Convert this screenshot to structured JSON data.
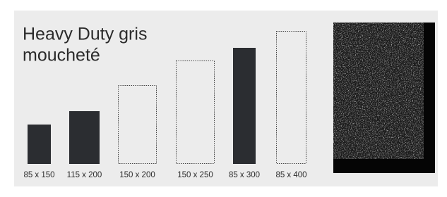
{
  "header": {
    "title_lines": [
      "Heavy Duty gris",
      "moucheté"
    ]
  },
  "sizes": [
    {
      "label": "85 x 150",
      "filled": true
    },
    {
      "label": "115 x 200",
      "filled": true
    },
    {
      "label": "150 x 200",
      "filled": false
    },
    {
      "label": "150 x 250",
      "filled": false
    },
    {
      "label": "85 x 300",
      "filled": true
    },
    {
      "label": "85 x 400",
      "filled": false
    }
  ]
}
